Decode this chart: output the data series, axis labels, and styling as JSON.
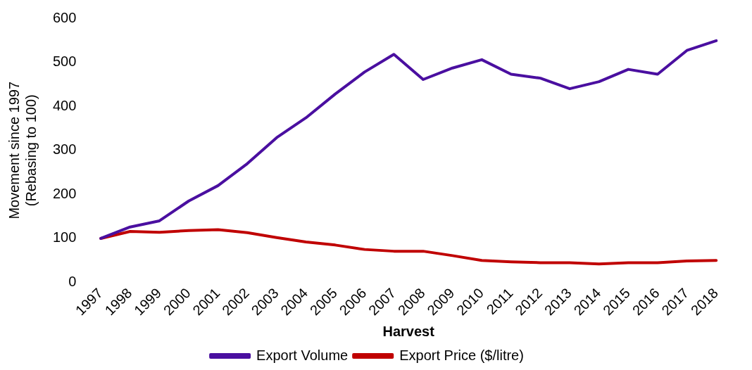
{
  "chart_data": {
    "type": "line",
    "xlabel": "Harvest",
    "ylabel": "Movement since 1997\n(Rebasing to 100)",
    "categories": [
      "1997",
      "1998",
      "1999",
      "2000",
      "2001",
      "2002",
      "2003",
      "2004",
      "2005",
      "2006",
      "2007",
      "2008",
      "2009",
      "2010",
      "2011",
      "2012",
      "2013",
      "2014",
      "2015",
      "2016",
      "2017",
      "2018"
    ],
    "series": [
      {
        "name": "Export Volume",
        "color": "#4a0fa0",
        "values": [
          100,
          126,
          140,
          185,
          220,
          270,
          329,
          374,
          428,
          478,
          518,
          461,
          487,
          506,
          473,
          464,
          440,
          456,
          484,
          473,
          527,
          549
        ]
      },
      {
        "name": "Export Price ($/litre)",
        "color": "#c00000",
        "values": [
          100,
          116,
          114,
          118,
          120,
          113,
          102,
          92,
          85,
          75,
          71,
          71,
          61,
          50,
          47,
          45,
          45,
          42,
          45,
          45,
          49,
          50
        ]
      }
    ],
    "ylim": [
      0,
      600
    ],
    "yticks": [
      0,
      100,
      200,
      300,
      400,
      500,
      600
    ],
    "grid": false,
    "legend": "bottom",
    "marker": "none",
    "line_style": "solid"
  }
}
